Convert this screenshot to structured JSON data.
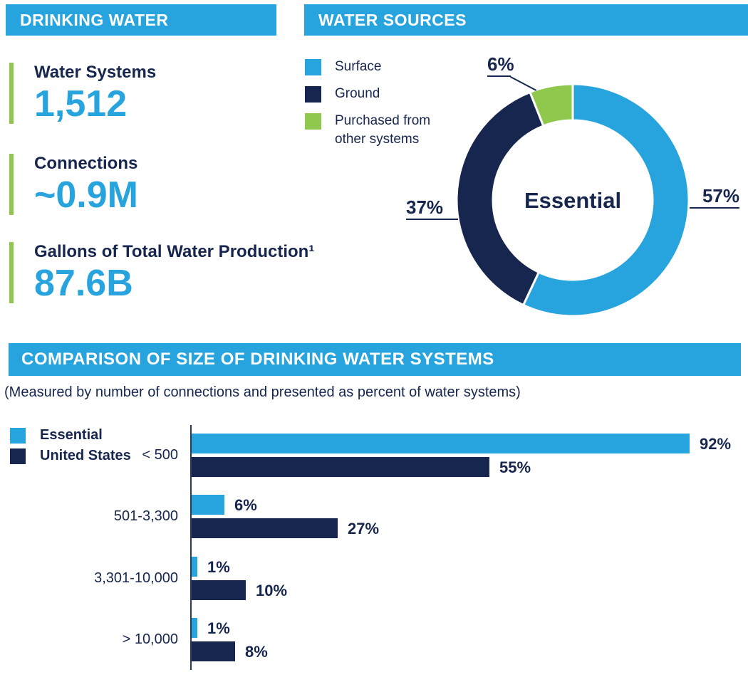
{
  "colors": {
    "blue": "#27A4DE",
    "navy": "#16264E",
    "green": "#90C84D",
    "header_text": "#FFFFFF"
  },
  "drinking_water": {
    "header": "DRINKING WATER",
    "stats": [
      {
        "label": "Water Systems",
        "value": "1,512"
      },
      {
        "label": "Connections",
        "value": "~0.9M"
      },
      {
        "label": "Gallons of Total Water Production¹",
        "value": "87.6B"
      }
    ]
  },
  "water_sources": {
    "header": "WATER SOURCES"
  },
  "comparison": {
    "header": "COMPARISON OF SIZE OF DRINKING WATER SYSTEMS",
    "subtitle": "(Measured by number of connections and presented as percent of water systems)"
  },
  "chart_data": [
    {
      "id": "water-sources-donut",
      "type": "pie",
      "donut": true,
      "title": "WATER SOURCES",
      "center_label": "Essential",
      "labels": [
        "Surface",
        "Ground",
        "Purchased from other systems"
      ],
      "values": [
        57,
        37,
        6
      ],
      "pct_labels": [
        "57%",
        "37%",
        "6%"
      ],
      "colors": [
        "#27A4DE",
        "#16264E",
        "#90C84D"
      ],
      "start_angle": "12 o'clock",
      "direction": "clockwise",
      "legend_position": "left"
    },
    {
      "id": "system-size-comparison",
      "type": "bar",
      "orientation": "horizontal",
      "title": "COMPARISON OF SIZE OF DRINKING WATER SYSTEMS",
      "categories": [
        "< 500",
        "501-3,300",
        "3,301-10,000",
        "> 10,000"
      ],
      "series": [
        {
          "name": "Essential",
          "color": "#27A4DE",
          "values": [
            92,
            6,
            1,
            1
          ]
        },
        {
          "name": "United States",
          "color": "#16264E",
          "values": [
            55,
            27,
            10,
            8
          ]
        }
      ],
      "value_labels": [
        [
          "92%",
          "6%",
          "1%",
          "1%"
        ],
        [
          "55%",
          "27%",
          "10%",
          "8%"
        ]
      ],
      "xlim": [
        0,
        100
      ],
      "legend_position": "top-left"
    }
  ]
}
